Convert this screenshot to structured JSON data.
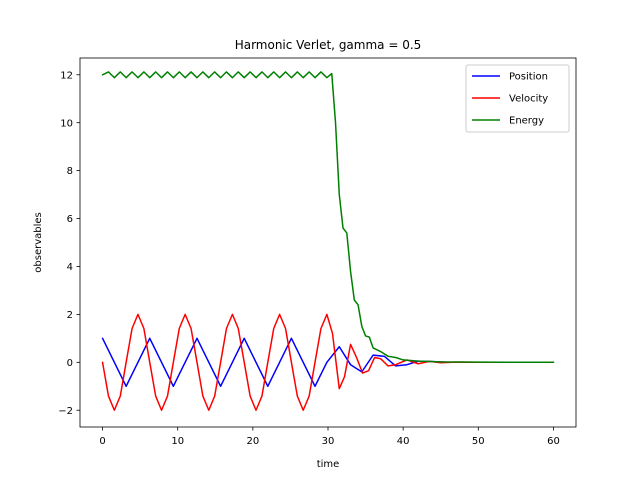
{
  "chart_data": {
    "type": "line",
    "title": "Harmonic Verlet, gamma = 0.5",
    "xlabel": "time",
    "ylabel": "observables",
    "xlim": [
      -3,
      63
    ],
    "ylim": [
      -2.7,
      12.7
    ],
    "xticks": [
      0,
      10,
      20,
      30,
      40,
      50,
      60
    ],
    "yticks": [
      -2,
      0,
      2,
      4,
      6,
      8,
      10,
      12
    ],
    "xtick_labels": [
      "0",
      "10",
      "20",
      "30",
      "40",
      "50",
      "60"
    ],
    "ytick_labels": [
      "−2",
      "0",
      "2",
      "4",
      "6",
      "8",
      "10",
      "12"
    ],
    "grid": false,
    "legend_position": "top-right",
    "damping_onset_time": 30,
    "gamma": 0.5,
    "series": [
      {
        "name": "Position",
        "color": "#0000ff",
        "x": [
          0,
          1.57,
          3.14,
          4.71,
          6.28,
          7.85,
          9.42,
          10.99,
          12.57,
          14.14,
          15.71,
          17.28,
          18.85,
          20.42,
          21.99,
          23.56,
          25.13,
          26.7,
          28.27,
          29.85,
          31.5,
          33.0,
          34.5,
          36.0,
          37.5,
          39.0,
          40.5,
          42.0,
          44.0,
          46.0,
          50.0,
          55.0,
          60.0
        ],
        "y": [
          1.0,
          0.0,
          -1.0,
          0.0,
          1.0,
          0.0,
          -1.0,
          0.0,
          1.0,
          0.0,
          -1.0,
          0.0,
          1.0,
          0.0,
          -1.0,
          0.0,
          1.0,
          0.0,
          -1.0,
          0.0,
          0.65,
          -0.1,
          -0.4,
          0.3,
          0.25,
          -0.15,
          -0.1,
          0.05,
          0.03,
          0.0,
          0.0,
          0.0,
          0.0
        ]
      },
      {
        "name": "Velocity",
        "color": "#ff0000",
        "x": [
          0,
          0.79,
          1.57,
          2.36,
          3.14,
          3.93,
          4.71,
          5.5,
          6.28,
          7.07,
          7.85,
          8.64,
          9.42,
          10.21,
          10.99,
          11.78,
          12.57,
          13.35,
          14.14,
          14.92,
          15.71,
          16.49,
          17.28,
          18.06,
          18.85,
          19.64,
          20.42,
          21.21,
          21.99,
          22.78,
          23.56,
          24.35,
          25.13,
          25.92,
          26.7,
          27.49,
          28.27,
          29.06,
          29.85,
          30.6,
          31.5,
          32.2,
          33.0,
          33.8,
          34.6,
          35.4,
          36.2,
          37.0,
          38.0,
          39.0,
          40.5,
          42.0,
          43.5,
          45.0,
          47.0,
          50.0,
          55.0,
          60.0
        ],
        "y": [
          0.0,
          -1.41,
          -2.0,
          -1.41,
          0.0,
          1.41,
          2.0,
          1.41,
          0.0,
          -1.41,
          -2.0,
          -1.41,
          0.0,
          1.41,
          2.0,
          1.41,
          0.0,
          -1.41,
          -2.0,
          -1.41,
          0.0,
          1.41,
          2.0,
          1.41,
          0.0,
          -1.41,
          -2.0,
          -1.41,
          0.0,
          1.41,
          2.0,
          1.41,
          0.0,
          -1.41,
          -2.0,
          -1.41,
          0.0,
          1.41,
          2.0,
          1.2,
          -1.1,
          -0.6,
          0.75,
          0.2,
          -0.45,
          -0.35,
          0.2,
          0.15,
          -0.15,
          -0.1,
          0.1,
          -0.06,
          0.04,
          -0.02,
          0.01,
          0.0,
          0.0,
          0.0
        ]
      },
      {
        "name": "Energy",
        "color": "#008000",
        "x": [
          0,
          0.79,
          1.57,
          2.36,
          3.14,
          3.93,
          4.71,
          5.5,
          6.28,
          7.07,
          7.85,
          8.64,
          9.42,
          10.21,
          10.99,
          11.78,
          12.57,
          13.35,
          14.14,
          14.92,
          15.71,
          16.49,
          17.28,
          18.06,
          18.85,
          19.64,
          20.42,
          21.21,
          21.99,
          22.78,
          23.56,
          24.35,
          25.13,
          25.92,
          26.7,
          27.49,
          28.27,
          29.06,
          29.85,
          30.5,
          31.0,
          31.5,
          32.0,
          32.5,
          33.0,
          33.5,
          34.0,
          34.5,
          35.0,
          35.5,
          36.0,
          37.0,
          38.0,
          39.0,
          40.0,
          42.0,
          45.0,
          50.0,
          55.0,
          60.0
        ],
        "y": [
          12.0,
          12.12,
          11.88,
          12.12,
          11.88,
          12.12,
          11.88,
          12.12,
          11.88,
          12.12,
          11.88,
          12.12,
          11.88,
          12.12,
          11.88,
          12.12,
          11.88,
          12.12,
          11.88,
          12.12,
          11.88,
          12.12,
          11.88,
          12.12,
          11.88,
          12.12,
          11.88,
          12.12,
          11.88,
          12.12,
          11.88,
          12.12,
          11.88,
          12.12,
          11.88,
          12.12,
          11.88,
          12.12,
          11.88,
          12.05,
          10.0,
          7.0,
          5.6,
          5.4,
          3.8,
          2.6,
          2.4,
          1.5,
          1.1,
          1.05,
          0.6,
          0.45,
          0.25,
          0.2,
          0.1,
          0.05,
          0.02,
          0.01,
          0.0,
          0.0
        ]
      }
    ]
  }
}
